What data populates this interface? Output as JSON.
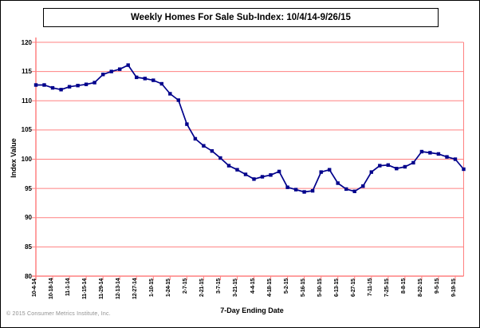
{
  "page": {
    "copyright": "© 2015 Consumer Metrics Institute, Inc."
  },
  "chart_data": {
    "type": "line",
    "title": "Weekly Homes For Sale Sub-Index: 10/4/14-9/26/15",
    "xlabel": "7-Day Ending Date",
    "ylabel": "Index Value",
    "ylim": [
      80,
      120
    ],
    "ytick_step": 5,
    "y_ticks": [
      120,
      115,
      110,
      105,
      100,
      95,
      90,
      85,
      80
    ],
    "grid": "horizontal-only",
    "legend_position": "none",
    "line_color": "#00008b",
    "axis_color": "#ff8080",
    "marker": "square",
    "x": [
      "10-4-14",
      "10-11-14",
      "10-18-14",
      "10-25-14",
      "11-1-14",
      "11-8-14",
      "11-15-14",
      "11-22-14",
      "11-29-14",
      "12-6-14",
      "12-13-14",
      "12-20-14",
      "12-27-14",
      "1-3-15",
      "1-10-15",
      "1-17-15",
      "1-24-15",
      "1-31-15",
      "2-7-15",
      "2-14-15",
      "2-21-15",
      "2-28-15",
      "3-7-15",
      "3-14-15",
      "3-21-15",
      "3-28-15",
      "4-4-15",
      "4-11-15",
      "4-18-15",
      "4-25-15",
      "5-2-15",
      "5-9-15",
      "5-16-15",
      "5-23-15",
      "5-30-15",
      "6-6-15",
      "6-13-15",
      "6-20-15",
      "6-27-15",
      "7-4-15",
      "7-11-15",
      "7-18-15",
      "7-25-15",
      "8-1-15",
      "8-8-15",
      "8-15-15",
      "8-22-15",
      "8-29-15",
      "9-5-15",
      "9-12-15",
      "9-19-15",
      "9-26-15"
    ],
    "values": [
      112.7,
      112.7,
      112.2,
      111.9,
      112.4,
      112.6,
      112.8,
      113.1,
      114.5,
      115.0,
      115.4,
      116.1,
      114.0,
      113.8,
      113.5,
      112.9,
      111.2,
      110.1,
      106.0,
      103.5,
      102.3,
      101.4,
      100.2,
      98.9,
      98.2,
      97.4,
      96.6,
      97.0,
      97.3,
      97.9,
      95.2,
      94.8,
      94.4,
      94.6,
      97.8,
      98.2,
      95.9,
      94.9,
      94.5,
      95.4,
      97.8,
      98.9,
      99.0,
      98.4,
      98.7,
      99.4,
      101.3,
      101.1,
      100.9,
      100.4,
      100.0,
      98.3
    ],
    "x_tick_labels": [
      "10-4-14",
      "10-18-14",
      "11-1-14",
      "11-15-14",
      "11-29-14",
      "12-13-14",
      "12-27-14",
      "1-10-15",
      "1-24-15",
      "2-7-15",
      "2-21-15",
      "3-7-15",
      "3-21-15",
      "4-4-15",
      "4-18-15",
      "5-2-15",
      "5-16-15",
      "5-30-15",
      "6-13-15",
      "6-27-15",
      "7-11-15",
      "7-25-15",
      "8-8-15",
      "8-22-15",
      "9-5-15",
      "9-19-15"
    ]
  }
}
